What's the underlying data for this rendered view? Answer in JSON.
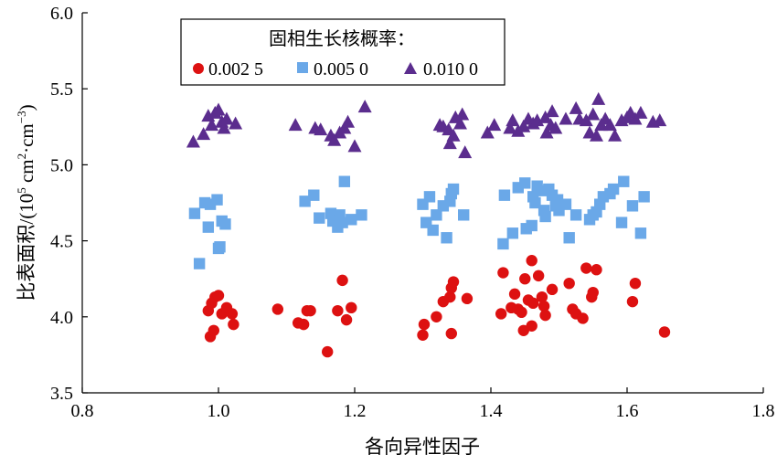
{
  "chart_data": {
    "type": "scatter",
    "xlabel": "各向异性因子",
    "ylabel_main": "比表面积/(10",
    "ylabel_sup1": "5",
    "ylabel_mid": " cm",
    "ylabel_sup2": "2",
    "ylabel_mid2": "·cm",
    "ylabel_sup3": "−3",
    "ylabel_end": ")",
    "xlim": [
      0.8,
      1.8
    ],
    "ylim": [
      3.5,
      6.0
    ],
    "xticks": [
      "0.8",
      "1.0",
      "1.2",
      "1.4",
      "1.6",
      "1.8"
    ],
    "yticks": [
      "3.5",
      "4.0",
      "4.5",
      "5.0",
      "5.5",
      "6.0"
    ],
    "grid": false,
    "legend": {
      "title": "固相生长核概率：",
      "placement": "top-left"
    },
    "series": [
      {
        "name": "0.002 5",
        "color": "#dd1111",
        "marker": "circle",
        "points": [
          [
            0.985,
            4.04
          ],
          [
            0.99,
            4.09
          ],
          [
            0.995,
            4.13
          ],
          [
            1.0,
            4.14
          ],
          [
            1.005,
            4.02
          ],
          [
            0.988,
            3.87
          ],
          [
            0.993,
            3.91
          ],
          [
            1.012,
            4.06
          ],
          [
            1.02,
            4.02
          ],
          [
            1.022,
            3.95
          ],
          [
            1.087,
            4.05
          ],
          [
            1.117,
            3.96
          ],
          [
            1.125,
            3.95
          ],
          [
            1.13,
            4.04
          ],
          [
            1.135,
            4.04
          ],
          [
            1.16,
            3.77
          ],
          [
            1.175,
            4.04
          ],
          [
            1.182,
            4.24
          ],
          [
            1.188,
            3.98
          ],
          [
            1.195,
            4.06
          ],
          [
            1.3,
            3.88
          ],
          [
            1.302,
            3.95
          ],
          [
            1.32,
            4.0
          ],
          [
            1.33,
            4.1
          ],
          [
            1.34,
            4.13
          ],
          [
            1.342,
            4.19
          ],
          [
            1.345,
            4.23
          ],
          [
            1.342,
            3.89
          ],
          [
            1.365,
            4.12
          ],
          [
            1.415,
            4.02
          ],
          [
            1.418,
            4.29
          ],
          [
            1.43,
            4.06
          ],
          [
            1.435,
            4.15
          ],
          [
            1.44,
            4.05
          ],
          [
            1.445,
            4.03
          ],
          [
            1.448,
            3.91
          ],
          [
            1.45,
            4.25
          ],
          [
            1.455,
            4.11
          ],
          [
            1.46,
            4.37
          ],
          [
            1.462,
            4.09
          ],
          [
            1.46,
            3.94
          ],
          [
            1.47,
            4.27
          ],
          [
            1.475,
            4.13
          ],
          [
            1.478,
            4.07
          ],
          [
            1.48,
            4.01
          ],
          [
            1.49,
            4.18
          ],
          [
            1.515,
            4.22
          ],
          [
            1.52,
            4.05
          ],
          [
            1.525,
            4.02
          ],
          [
            1.535,
            3.99
          ],
          [
            1.54,
            4.32
          ],
          [
            1.548,
            4.13
          ],
          [
            1.55,
            4.16
          ],
          [
            1.555,
            4.31
          ],
          [
            1.608,
            4.1
          ],
          [
            1.612,
            4.22
          ],
          [
            1.655,
            3.9
          ]
        ]
      },
      {
        "name": "0.005 0",
        "color": "#6aa8e8",
        "marker": "square",
        "points": [
          [
            0.965,
            4.68
          ],
          [
            0.972,
            4.35
          ],
          [
            0.98,
            4.75
          ],
          [
            0.985,
            4.59
          ],
          [
            0.988,
            4.74
          ],
          [
            0.998,
            4.77
          ],
          [
            1.0,
            4.45
          ],
          [
            1.002,
            4.46
          ],
          [
            1.005,
            4.63
          ],
          [
            1.01,
            4.61
          ],
          [
            1.127,
            4.76
          ],
          [
            1.14,
            4.8
          ],
          [
            1.148,
            4.65
          ],
          [
            1.165,
            4.68
          ],
          [
            1.168,
            4.63
          ],
          [
            1.175,
            4.59
          ],
          [
            1.178,
            4.67
          ],
          [
            1.182,
            4.62
          ],
          [
            1.185,
            4.89
          ],
          [
            1.195,
            4.64
          ],
          [
            1.21,
            4.67
          ],
          [
            1.3,
            4.74
          ],
          [
            1.305,
            4.62
          ],
          [
            1.31,
            4.79
          ],
          [
            1.315,
            4.57
          ],
          [
            1.32,
            4.67
          ],
          [
            1.33,
            4.73
          ],
          [
            1.335,
            4.52
          ],
          [
            1.34,
            4.76
          ],
          [
            1.342,
            4.81
          ],
          [
            1.345,
            4.84
          ],
          [
            1.36,
            4.67
          ],
          [
            1.418,
            4.48
          ],
          [
            1.42,
            4.8
          ],
          [
            1.432,
            4.55
          ],
          [
            1.44,
            4.85
          ],
          [
            1.45,
            4.88
          ],
          [
            1.452,
            4.58
          ],
          [
            1.46,
            4.6
          ],
          [
            1.462,
            4.79
          ],
          [
            1.465,
            4.75
          ],
          [
            1.468,
            4.86
          ],
          [
            1.475,
            4.83
          ],
          [
            1.478,
            4.7
          ],
          [
            1.48,
            4.66
          ],
          [
            1.485,
            4.84
          ],
          [
            1.49,
            4.8
          ],
          [
            1.495,
            4.73
          ],
          [
            1.498,
            4.77
          ],
          [
            1.5,
            4.7
          ],
          [
            1.51,
            4.74
          ],
          [
            1.515,
            4.52
          ],
          [
            1.525,
            4.67
          ],
          [
            1.545,
            4.64
          ],
          [
            1.55,
            4.67
          ],
          [
            1.555,
            4.69
          ],
          [
            1.56,
            4.74
          ],
          [
            1.565,
            4.79
          ],
          [
            1.575,
            4.81
          ],
          [
            1.58,
            4.84
          ],
          [
            1.592,
            4.62
          ],
          [
            1.595,
            4.89
          ],
          [
            1.608,
            4.73
          ],
          [
            1.62,
            4.55
          ],
          [
            1.625,
            4.79
          ]
        ]
      },
      {
        "name": "0.010 0",
        "color": "#5b2d8e",
        "marker": "triangle",
        "points": [
          [
            0.963,
            5.15
          ],
          [
            0.978,
            5.2
          ],
          [
            0.985,
            5.32
          ],
          [
            0.99,
            5.26
          ],
          [
            0.995,
            5.34
          ],
          [
            1.0,
            5.36
          ],
          [
            1.005,
            5.28
          ],
          [
            1.008,
            5.24
          ],
          [
            1.012,
            5.3
          ],
          [
            1.025,
            5.27
          ],
          [
            1.113,
            5.26
          ],
          [
            1.142,
            5.24
          ],
          [
            1.15,
            5.23
          ],
          [
            1.165,
            5.19
          ],
          [
            1.17,
            5.16
          ],
          [
            1.178,
            5.21
          ],
          [
            1.185,
            5.24
          ],
          [
            1.19,
            5.28
          ],
          [
            1.2,
            5.12
          ],
          [
            1.215,
            5.38
          ],
          [
            1.325,
            5.26
          ],
          [
            1.33,
            5.25
          ],
          [
            1.338,
            5.23
          ],
          [
            1.34,
            5.14
          ],
          [
            1.345,
            5.19
          ],
          [
            1.348,
            5.31
          ],
          [
            1.355,
            5.27
          ],
          [
            1.358,
            5.33
          ],
          [
            1.362,
            5.08
          ],
          [
            1.395,
            5.21
          ],
          [
            1.405,
            5.26
          ],
          [
            1.428,
            5.24
          ],
          [
            1.432,
            5.29
          ],
          [
            1.44,
            5.22
          ],
          [
            1.448,
            5.25
          ],
          [
            1.455,
            5.3
          ],
          [
            1.462,
            5.27
          ],
          [
            1.468,
            5.29
          ],
          [
            1.48,
            5.31
          ],
          [
            1.482,
            5.21
          ],
          [
            1.488,
            5.26
          ],
          [
            1.49,
            5.35
          ],
          [
            1.495,
            5.24
          ],
          [
            1.51,
            5.3
          ],
          [
            1.525,
            5.37
          ],
          [
            1.53,
            5.3
          ],
          [
            1.54,
            5.29
          ],
          [
            1.545,
            5.21
          ],
          [
            1.55,
            5.33
          ],
          [
            1.555,
            5.19
          ],
          [
            1.558,
            5.43
          ],
          [
            1.562,
            5.26
          ],
          [
            1.568,
            5.3
          ],
          [
            1.575,
            5.26
          ],
          [
            1.582,
            5.19
          ],
          [
            1.592,
            5.29
          ],
          [
            1.6,
            5.31
          ],
          [
            1.605,
            5.34
          ],
          [
            1.612,
            5.3
          ],
          [
            1.62,
            5.34
          ],
          [
            1.638,
            5.28
          ],
          [
            1.648,
            5.29
          ]
        ]
      }
    ]
  }
}
